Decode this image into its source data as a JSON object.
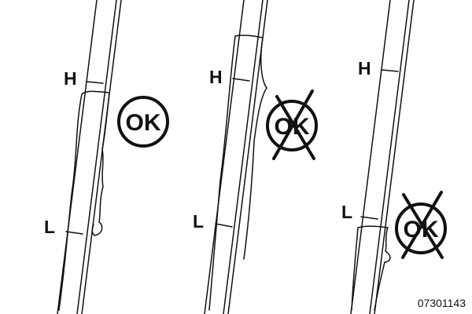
{
  "diagram": {
    "high_mark_label": "H",
    "low_mark_label": "L",
    "reference_code": "07301143",
    "panels": [
      {
        "id": "level-between-marks",
        "status_text": "OK",
        "crossed_out": false
      },
      {
        "id": "level-above-high-mark",
        "status_text": "OK",
        "crossed_out": true
      },
      {
        "id": "level-below-low-mark",
        "status_text": "OK",
        "crossed_out": true
      }
    ],
    "colors": {
      "ink": "#111111",
      "background": "#ffffff"
    }
  }
}
